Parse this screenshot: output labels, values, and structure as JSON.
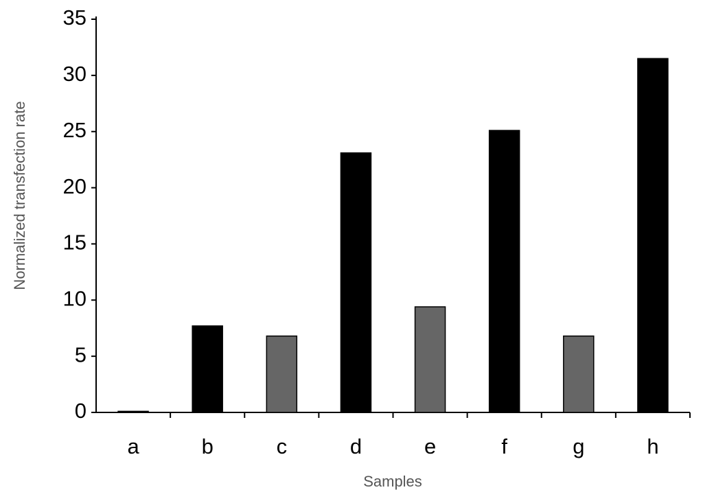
{
  "chart_data": {
    "type": "bar",
    "x_label": "Samples",
    "y_label": "Normalized transfection rate",
    "categories": [
      "a",
      "b",
      "c",
      "d",
      "e",
      "f",
      "g",
      "h"
    ],
    "values": [
      0.1,
      7.7,
      6.8,
      23.1,
      9.4,
      25.1,
      6.8,
      31.5
    ],
    "colors": [
      "#000000",
      "#000000",
      "#666666",
      "#000000",
      "#666666",
      "#000000",
      "#666666",
      "#000000"
    ],
    "ylim": [
      0,
      35
    ],
    "yticks": [
      0,
      5,
      10,
      15,
      20,
      25,
      30,
      35
    ],
    "grid": false
  }
}
